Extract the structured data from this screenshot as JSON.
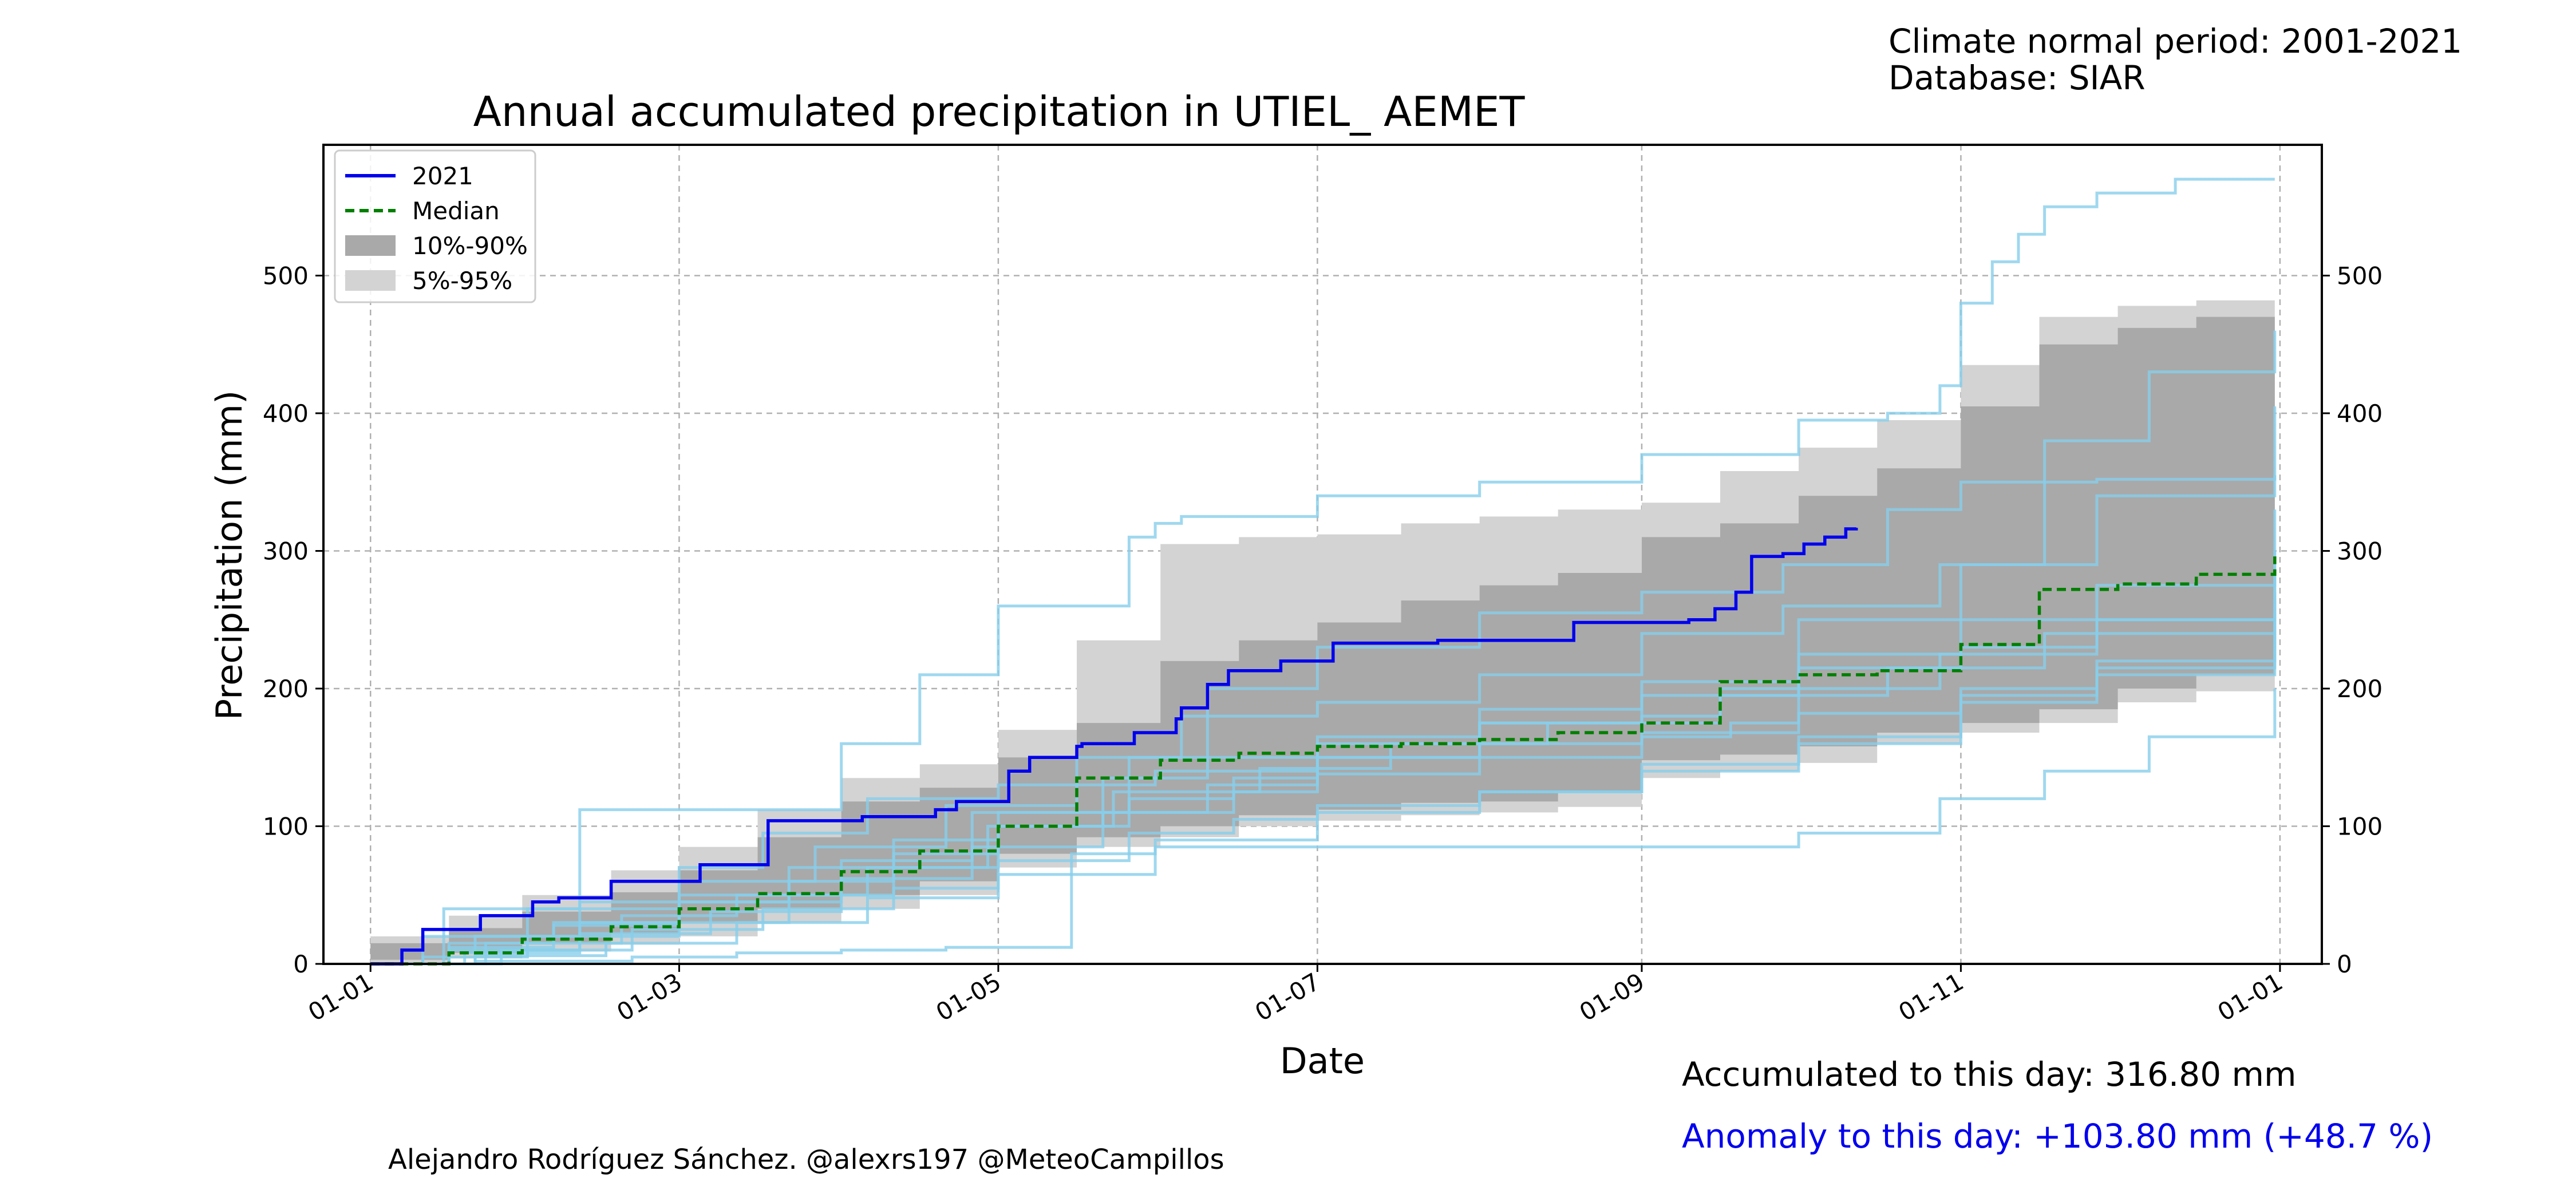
{
  "header": {
    "period": "Climate normal period: 2001-2021",
    "database": "Database: SIAR"
  },
  "footer": {
    "accumulated": "Accumulated to this day: 316.80 mm",
    "anomaly": "Anomaly to this day: +103.80 mm (+48.7 %)",
    "credit": "Alejandro Rodríguez Sánchez. @alexrs197 @MeteoCampillos"
  },
  "colors": {
    "current_year": "#0000ee",
    "median": "#007f00",
    "band_10_90": "#a9a9a9",
    "band_5_95": "#d3d3d3",
    "other_years": "#87ceeb"
  },
  "chart_data": {
    "type": "line",
    "title": "Annual accumulated precipitation in UTIEL_ AEMET",
    "xlabel": "Date",
    "ylabel": "Precipitation (mm)",
    "x_ticks": [
      "01-01",
      "01-03",
      "01-05",
      "01-07",
      "01-09",
      "01-11",
      "01-01"
    ],
    "x_tick_days": [
      0,
      59,
      120,
      181,
      243,
      304,
      365
    ],
    "xlim": [
      -9,
      373
    ],
    "y_ticks": [
      0,
      100,
      200,
      300,
      400,
      500
    ],
    "ylim": [
      0,
      595
    ],
    "grid": true,
    "legend_position": "top-left",
    "legend": [
      {
        "label": "2021",
        "style": "solid-line",
        "color": "#0000ee"
      },
      {
        "label": "Median",
        "style": "dashed-line",
        "color": "#007f00"
      },
      {
        "label": "10%-90%",
        "style": "patch",
        "color": "#a9a9a9"
      },
      {
        "label": "5%-95%",
        "style": "patch",
        "color": "#d3d3d3"
      }
    ],
    "current_year": {
      "name": "2021",
      "x": [
        0,
        4,
        6,
        10,
        20,
        21,
        31,
        36,
        46,
        53,
        63,
        66,
        76,
        84,
        94,
        97,
        108,
        112,
        122,
        126,
        135,
        136,
        142,
        146,
        154,
        155,
        160,
        164,
        174,
        184,
        194,
        204,
        214,
        230,
        240,
        250,
        252,
        257,
        261,
        264,
        270,
        271,
        274,
        278,
        282,
        284
      ],
      "y": [
        0,
        0,
        10,
        25,
        25,
        35,
        45,
        48,
        60,
        60,
        72,
        72,
        104,
        104,
        107,
        107,
        112,
        118,
        140,
        150,
        158,
        160,
        160,
        168,
        178,
        186,
        203,
        213,
        220,
        233,
        233,
        235,
        235,
        248,
        248,
        248,
        250,
        258,
        270,
        296,
        298,
        298,
        305,
        310,
        316,
        316.8
      ]
    },
    "median": {
      "x": [
        0,
        15,
        29,
        46,
        59,
        74,
        90,
        105,
        120,
        135,
        151,
        166,
        181,
        197,
        212,
        227,
        243,
        258,
        273,
        288,
        304,
        319,
        334,
        349,
        364
      ],
      "y": [
        0,
        8,
        18,
        27,
        40,
        51,
        67,
        82,
        100,
        135,
        148,
        153,
        158,
        160,
        163,
        168,
        175,
        205,
        210,
        213,
        232,
        272,
        276,
        283,
        296
      ]
    },
    "band_10_90": {
      "x": [
        0,
        15,
        29,
        46,
        59,
        74,
        90,
        105,
        120,
        135,
        151,
        166,
        181,
        197,
        212,
        227,
        243,
        258,
        273,
        288,
        304,
        319,
        334,
        349,
        364
      ],
      "lower": [
        0,
        3,
        8,
        15,
        22,
        30,
        40,
        50,
        60,
        80,
        92,
        100,
        108,
        112,
        117,
        118,
        125,
        148,
        152,
        158,
        168,
        175,
        185,
        200,
        210
      ],
      "upper": [
        15,
        26,
        38,
        52,
        68,
        92,
        118,
        128,
        150,
        175,
        220,
        235,
        248,
        264,
        275,
        284,
        310,
        320,
        340,
        360,
        405,
        450,
        462,
        470,
        475
      ]
    },
    "band_5_95": {
      "x": [
        0,
        15,
        29,
        46,
        59,
        74,
        90,
        105,
        120,
        135,
        151,
        166,
        181,
        197,
        212,
        227,
        243,
        258,
        273,
        288,
        304,
        319,
        334,
        349,
        364
      ],
      "lower": [
        0,
        1,
        4,
        9,
        14,
        20,
        30,
        40,
        50,
        70,
        85,
        92,
        100,
        104,
        108,
        110,
        114,
        135,
        140,
        146,
        160,
        168,
        175,
        190,
        198
      ],
      "upper": [
        20,
        35,
        50,
        68,
        85,
        112,
        135,
        145,
        170,
        235,
        305,
        310,
        312,
        320,
        325,
        330,
        335,
        358,
        375,
        395,
        435,
        470,
        478,
        482,
        485
      ]
    },
    "other_years": [
      {
        "x": [
          0,
          14,
          40,
          60,
          90,
          105,
          120,
          130,
          145,
          150,
          155,
          181,
          212,
          243,
          273,
          290,
          300,
          304,
          310,
          315,
          320,
          330,
          345,
          364
        ],
        "y": [
          0,
          40,
          112,
          112,
          160,
          210,
          260,
          260,
          310,
          320,
          325,
          340,
          350,
          370,
          395,
          400,
          420,
          480,
          510,
          530,
          550,
          560,
          570,
          570
        ]
      },
      {
        "x": [
          0,
          10,
          30,
          59,
          80,
          100,
          120,
          145,
          155,
          181,
          212,
          243,
          270,
          300,
          320,
          340,
          364
        ],
        "y": [
          0,
          5,
          20,
          30,
          50,
          70,
          110,
          150,
          180,
          190,
          210,
          240,
          260,
          290,
          380,
          430,
          460
        ]
      },
      {
        "x": [
          0,
          15,
          40,
          59,
          80,
          100,
          120,
          140,
          160,
          181,
          212,
          243,
          258,
          273,
          304,
          330,
          364
        ],
        "y": [
          0,
          10,
          30,
          50,
          70,
          90,
          100,
          110,
          130,
          160,
          175,
          180,
          200,
          250,
          290,
          340,
          405
        ]
      },
      {
        "x": [
          0,
          20,
          50,
          70,
          90,
          110,
          134,
          150,
          181,
          212,
          243,
          273,
          300,
          320,
          340,
          364
        ],
        "y": [
          0,
          2,
          5,
          8,
          10,
          12,
          80,
          85,
          85,
          85,
          85,
          95,
          120,
          140,
          165,
          200
        ]
      },
      {
        "x": [
          0,
          15,
          35,
          59,
          80,
          100,
          120,
          145,
          165,
          181,
          212,
          243,
          273,
          304,
          330,
          364
        ],
        "y": [
          0,
          15,
          30,
          45,
          60,
          80,
          100,
          120,
          135,
          150,
          175,
          195,
          215,
          230,
          250,
          270
        ]
      },
      {
        "x": [
          0,
          20,
          40,
          59,
          75,
          95,
          120,
          150,
          181,
          212,
          243,
          260,
          273,
          300,
          330,
          364
        ],
        "y": [
          0,
          20,
          45,
          70,
          95,
          120,
          130,
          140,
          150,
          160,
          165,
          175,
          200,
          225,
          250,
          300
        ]
      },
      {
        "x": [
          0,
          25,
          50,
          75,
          100,
          120,
          145,
          165,
          181,
          212,
          243,
          273,
          304,
          330,
          364
        ],
        "y": [
          0,
          10,
          25,
          40,
          55,
          75,
          95,
          105,
          115,
          125,
          140,
          160,
          200,
          220,
          240
        ]
      },
      {
        "x": [
          0,
          15,
          35,
          59,
          90,
          115,
          140,
          160,
          181,
          212,
          243,
          273,
          304,
          330,
          364
        ],
        "y": [
          0,
          12,
          28,
          45,
          75,
          110,
          135,
          150,
          165,
          185,
          205,
          225,
          250,
          275,
          330
        ]
      },
      {
        "x": [
          0,
          20,
          45,
          70,
          95,
          120,
          150,
          181,
          212,
          243,
          273,
          304,
          330,
          364
        ],
        "y": [
          0,
          6,
          15,
          30,
          48,
          65,
          90,
          110,
          125,
          145,
          165,
          190,
          215,
          255
        ]
      },
      {
        "x": [
          0,
          10,
          30,
          59,
          85,
          110,
          135,
          160,
          181,
          212,
          243,
          270,
          290,
          304,
          330,
          364
        ],
        "y": [
          0,
          20,
          40,
          60,
          85,
          115,
          150,
          200,
          230,
          255,
          270,
          290,
          330,
          350,
          352,
          355
        ]
      },
      {
        "x": [
          0,
          18,
          40,
          65,
          90,
          115,
          140,
          165,
          181,
          212,
          243,
          273,
          304,
          330,
          364
        ],
        "y": [
          0,
          8,
          22,
          38,
          62,
          85,
          110,
          125,
          138,
          150,
          168,
          182,
          195,
          210,
          285
        ]
      },
      {
        "x": [
          0,
          22,
          48,
          70,
          95,
          118,
          142,
          170,
          195,
          225,
          258,
          290,
          320,
          364
        ],
        "y": [
          0,
          15,
          35,
          50,
          70,
          100,
          125,
          142,
          160,
          175,
          195,
          215,
          240,
          265
        ]
      }
    ]
  }
}
